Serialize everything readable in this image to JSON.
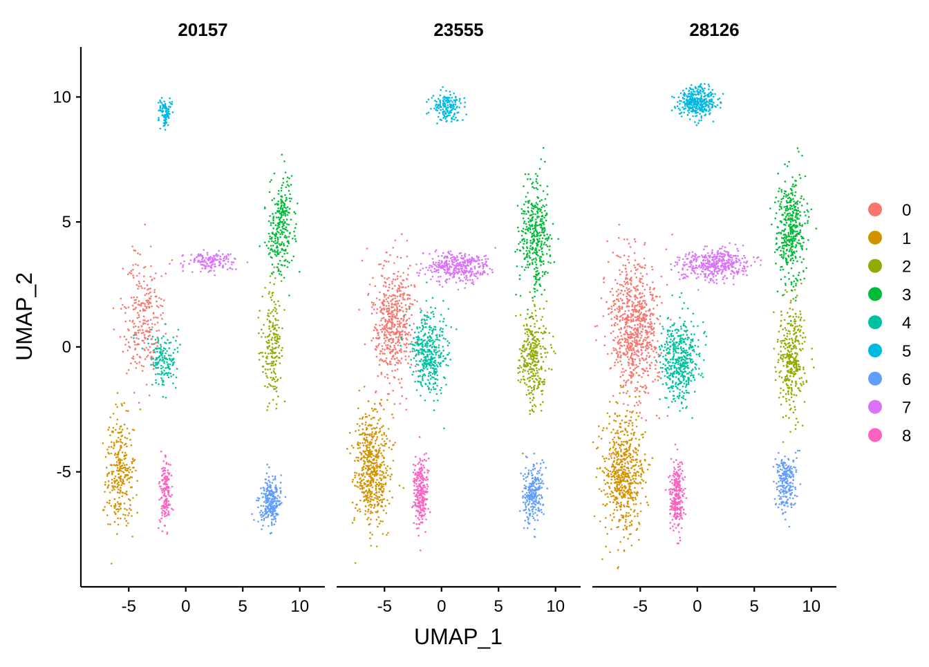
{
  "chart_data": {
    "type": "scatter",
    "facets": [
      "20157",
      "23555",
      "28126"
    ],
    "xlabel": "UMAP_1",
    "ylabel": "UMAP_2",
    "xticks": [
      -5,
      0,
      5,
      10
    ],
    "yticks": [
      -5,
      0,
      5,
      10
    ],
    "xlim": [
      -9.2,
      12.2
    ],
    "ylim": [
      -9.6,
      12.0
    ],
    "legend_position": "right",
    "grid": false,
    "clusters": [
      {
        "name": "0",
        "color": "#F8766D"
      },
      {
        "name": "1",
        "color": "#D39200"
      },
      {
        "name": "2",
        "color": "#93AA00"
      },
      {
        "name": "3",
        "color": "#00BA38"
      },
      {
        "name": "4",
        "color": "#00C19F"
      },
      {
        "name": "5",
        "color": "#00B9E3"
      },
      {
        "name": "6",
        "color": "#619CFF"
      },
      {
        "name": "7",
        "color": "#DB72FB"
      },
      {
        "name": "8",
        "color": "#FF61C3"
      }
    ],
    "cluster_regions": [
      {
        "cluster": "0",
        "facet": "20157",
        "center": [
          -3.7,
          1.2
        ],
        "spread": [
          1.8,
          2.3
        ],
        "cells": 260
      },
      {
        "cluster": "0",
        "facet": "23555",
        "center": [
          -4.2,
          1.0
        ],
        "spread": [
          1.9,
          2.6
        ],
        "cells": 520
      },
      {
        "cluster": "0",
        "facet": "28126",
        "center": [
          -5.5,
          0.8
        ],
        "spread": [
          2.2,
          2.8
        ],
        "cells": 760
      },
      {
        "cluster": "1",
        "facet": "20157",
        "center": [
          -5.8,
          -5.0
        ],
        "spread": [
          1.3,
          2.2
        ],
        "cells": 300
      },
      {
        "cluster": "1",
        "facet": "23555",
        "center": [
          -6.2,
          -4.8
        ],
        "spread": [
          1.5,
          2.3
        ],
        "cells": 560
      },
      {
        "cluster": "1",
        "facet": "28126",
        "center": [
          -6.5,
          -5.0
        ],
        "spread": [
          1.8,
          2.4
        ],
        "cells": 600
      },
      {
        "cluster": "2",
        "facet": "20157",
        "center": [
          7.6,
          0.0
        ],
        "spread": [
          0.9,
          2.2
        ],
        "cells": 200
      },
      {
        "cluster": "2",
        "facet": "23555",
        "center": [
          8.0,
          -0.5
        ],
        "spread": [
          1.2,
          2.0
        ],
        "cells": 320
      },
      {
        "cluster": "2",
        "facet": "28126",
        "center": [
          8.2,
          -0.5
        ],
        "spread": [
          1.2,
          2.2
        ],
        "cells": 340
      },
      {
        "cluster": "3",
        "facet": "20157",
        "center": [
          8.3,
          4.8
        ],
        "spread": [
          1.2,
          2.0
        ],
        "cells": 280
      },
      {
        "cluster": "3",
        "facet": "23555",
        "center": [
          8.2,
          4.5
        ],
        "spread": [
          1.3,
          2.1
        ],
        "cells": 380
      },
      {
        "cluster": "3",
        "facet": "28126",
        "center": [
          8.2,
          4.8
        ],
        "spread": [
          1.3,
          2.2
        ],
        "cells": 420
      },
      {
        "cluster": "4",
        "facet": "20157",
        "center": [
          -2.0,
          -0.5
        ],
        "spread": [
          1.4,
          1.2
        ],
        "cells": 150
      },
      {
        "cluster": "4",
        "facet": "23555",
        "center": [
          -1.2,
          -0.3
        ],
        "spread": [
          1.6,
          1.6
        ],
        "cells": 400
      },
      {
        "cluster": "4",
        "facet": "28126",
        "center": [
          -1.5,
          -0.5
        ],
        "spread": [
          1.6,
          1.6
        ],
        "cells": 460
      },
      {
        "cluster": "5",
        "facet": "20157",
        "center": [
          -1.8,
          9.4
        ],
        "spread": [
          0.6,
          0.5
        ],
        "cells": 90
      },
      {
        "cluster": "5",
        "facet": "23555",
        "center": [
          0.5,
          9.6
        ],
        "spread": [
          1.3,
          0.6
        ],
        "cells": 170
      },
      {
        "cluster": "5",
        "facet": "28126",
        "center": [
          0.0,
          9.8
        ],
        "spread": [
          1.7,
          0.6
        ],
        "cells": 360
      },
      {
        "cluster": "6",
        "facet": "20157",
        "center": [
          7.4,
          -6.2
        ],
        "spread": [
          0.9,
          0.9
        ],
        "cells": 260
      },
      {
        "cluster": "6",
        "facet": "23555",
        "center": [
          8.0,
          -5.8
        ],
        "spread": [
          0.9,
          1.2
        ],
        "cells": 240
      },
      {
        "cluster": "6",
        "facet": "28126",
        "center": [
          7.8,
          -5.4
        ],
        "spread": [
          0.9,
          1.1
        ],
        "cells": 220
      },
      {
        "cluster": "7",
        "facet": "20157",
        "center": [
          2.0,
          3.4
        ],
        "spread": [
          2.3,
          0.4
        ],
        "cells": 150
      },
      {
        "cluster": "7",
        "facet": "23555",
        "center": [
          1.5,
          3.2
        ],
        "spread": [
          2.8,
          0.6
        ],
        "cells": 360
      },
      {
        "cluster": "7",
        "facet": "28126",
        "center": [
          1.5,
          3.3
        ],
        "spread": [
          3.0,
          0.6
        ],
        "cells": 420
      },
      {
        "cluster": "8",
        "facet": "20157",
        "center": [
          -1.8,
          -5.8
        ],
        "spread": [
          0.5,
          1.3
        ],
        "cells": 160
      },
      {
        "cluster": "8",
        "facet": "23555",
        "center": [
          -1.8,
          -5.8
        ],
        "spread": [
          0.6,
          1.4
        ],
        "cells": 260
      },
      {
        "cluster": "8",
        "facet": "28126",
        "center": [
          -1.8,
          -6.0
        ],
        "spread": [
          0.6,
          1.3
        ],
        "cells": 260
      }
    ]
  }
}
